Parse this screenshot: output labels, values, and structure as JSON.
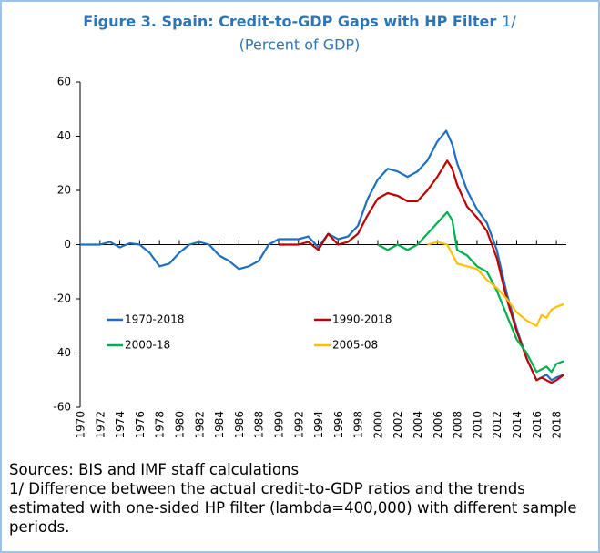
{
  "chart_data": {
    "type": "line",
    "title": "Figure 3. Spain: Credit-to-GDP Gaps with HP Filter",
    "title_note": "1/",
    "subtitle": "(Percent of GDP)",
    "xlim": [
      1970,
      2019
    ],
    "xticks": [
      1970,
      1972,
      1974,
      1976,
      1978,
      1980,
      1982,
      1984,
      1986,
      1988,
      1990,
      1992,
      1994,
      1996,
      1998,
      2000,
      2002,
      2004,
      2006,
      2008,
      2010,
      2012,
      2014,
      2016,
      2018
    ],
    "ylim": [
      -60,
      60
    ],
    "yticks": [
      -60,
      -40,
      -20,
      0,
      20,
      40,
      60
    ],
    "series": [
      {
        "name": "1970-2018",
        "color": "#1f6fc0",
        "x": [
          1970,
          1971,
          1972,
          1973,
          1974,
          1975,
          1976,
          1977,
          1978,
          1979,
          1980,
          1981,
          1982,
          1983,
          1984,
          1985,
          1986,
          1987,
          1988,
          1989,
          1990,
          1991,
          1992,
          1993,
          1994,
          1995,
          1996,
          1997,
          1998,
          1999,
          2000,
          2001,
          2002,
          2003,
          2004,
          2005,
          2006,
          2006.9,
          2007.5,
          2008,
          2009,
          2010,
          2011,
          2012,
          2013,
          2014,
          2015,
          2016,
          2016.5,
          2017,
          2017.5,
          2018,
          2018.75
        ],
        "values": [
          0,
          0,
          0,
          1,
          -1,
          0.5,
          0,
          -3,
          -8,
          -7,
          -3,
          0,
          1,
          0,
          -4,
          -6,
          -9,
          -8,
          -6,
          0,
          2,
          2,
          2,
          3,
          -1,
          4,
          2,
          3,
          7,
          17,
          24,
          28,
          27,
          25,
          27,
          31,
          38,
          42,
          37,
          30,
          20,
          13,
          8,
          -2,
          -18,
          -31,
          -42,
          -50,
          -49,
          -48,
          -50,
          -49,
          -48
        ]
      },
      {
        "name": "1990-2018",
        "color": "#c00000",
        "x": [
          1990,
          1991,
          1992,
          1993,
          1994,
          1995,
          1996,
          1997,
          1998,
          1999,
          2000,
          2001,
          2002,
          2003,
          2004,
          2005,
          2006,
          2007,
          2007.5,
          2008,
          2009,
          2010,
          2011,
          2012,
          2013,
          2014,
          2015,
          2016,
          2016.5,
          2017,
          2017.5,
          2018,
          2018.75
        ],
        "values": [
          0,
          0,
          0,
          1,
          -2,
          4,
          0,
          1,
          4,
          11,
          17,
          19,
          18,
          16,
          16,
          20,
          25,
          31,
          28,
          22,
          14,
          10,
          5,
          -5,
          -20,
          -32,
          -42,
          -50,
          -49,
          -50,
          -51,
          -50,
          -48
        ]
      },
      {
        "name": "2000-18",
        "color": "#00b050",
        "x": [
          2000,
          2001,
          2002,
          2003,
          2004,
          2005,
          2006,
          2007,
          2007.5,
          2008,
          2009,
          2010,
          2011,
          2012,
          2013,
          2014,
          2015,
          2016,
          2016.5,
          2017,
          2017.5,
          2018,
          2018.75
        ],
        "values": [
          0,
          -2,
          0,
          -2,
          0,
          4,
          8,
          12,
          9,
          -2,
          -4,
          -8,
          -10,
          -17,
          -26,
          -35,
          -40,
          -47,
          -46,
          -45,
          -47,
          -44,
          -43
        ]
      },
      {
        "name": "2005-08",
        "color": "#ffc000",
        "x": [
          2005,
          2006,
          2007,
          2008,
          2009,
          2010,
          2011,
          2012,
          2013,
          2014,
          2015,
          2016,
          2016.5,
          2017,
          2017.5,
          2018,
          2018.75
        ],
        "values": [
          0,
          1,
          0,
          -7,
          -8,
          -9,
          -13,
          -16,
          -20,
          -25,
          -28,
          -30,
          -26,
          -27,
          -24,
          -23,
          -22
        ]
      }
    ],
    "source": "Sources: BIS and IMF staff calculations",
    "note": "1/ Difference between the actual credit-to-GDP ratios and the trends estimated with one-sided HP filter (lambda=400,000) with different sample periods."
  }
}
